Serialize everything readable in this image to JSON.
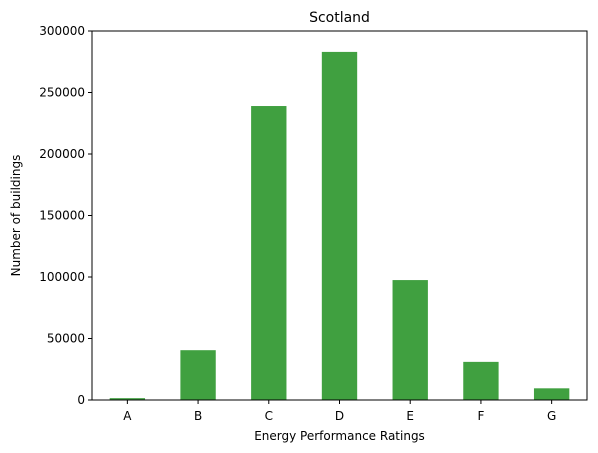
{
  "chart_data": {
    "type": "bar",
    "title": "Scotland",
    "xlabel": "Energy Performance Ratings",
    "ylabel": "Number of buildings",
    "categories": [
      "A",
      "B",
      "C",
      "D",
      "E",
      "F",
      "G"
    ],
    "values": [
      1500,
      40500,
      239000,
      283000,
      97500,
      31000,
      9500
    ],
    "ylim": [
      0,
      300000
    ],
    "yticks": [
      0,
      50000,
      100000,
      150000,
      200000,
      250000,
      300000
    ],
    "bar_color": "#40a040",
    "grid": false,
    "legend": "none"
  }
}
